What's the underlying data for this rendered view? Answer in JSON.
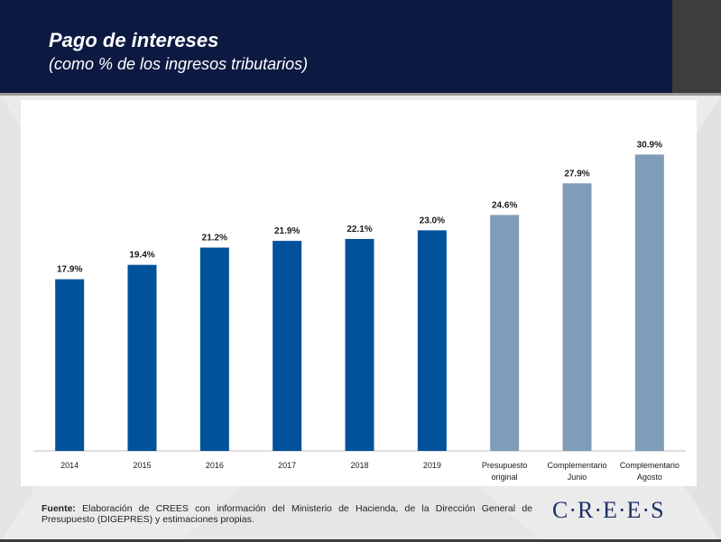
{
  "header": {
    "title": "Pago de intereses",
    "subtitle": "(como % de los ingresos tributarios)"
  },
  "colors": {
    "header_bg": "#0c1a42",
    "bar_actual": "#00529b",
    "bar_projection": "#7f9cb8"
  },
  "chart_data": {
    "type": "bar",
    "title": "",
    "xlabel": "",
    "ylabel": "",
    "ylim": [
      0,
      31.5
    ],
    "grid": false,
    "legend": "none",
    "categories": [
      [
        "2014"
      ],
      [
        "2015"
      ],
      [
        "2016"
      ],
      [
        "2017"
      ],
      [
        "2018"
      ],
      [
        "2019"
      ],
      [
        "Presupuesto",
        "original"
      ],
      [
        "Complementario",
        "Junio"
      ],
      [
        "Complementario",
        "Agosto"
      ]
    ],
    "values": [
      17.9,
      19.4,
      21.2,
      21.9,
      22.1,
      23.0,
      24.6,
      27.9,
      30.9
    ],
    "value_labels": [
      "17.9%",
      "19.4%",
      "21.2%",
      "21.9%",
      "22.1%",
      "23.0%",
      "24.6%",
      "27.9%",
      "30.9%"
    ],
    "bar_group": [
      "actual",
      "actual",
      "actual",
      "actual",
      "actual",
      "actual",
      "projection",
      "projection",
      "projection"
    ]
  },
  "footer": {
    "source_label": "Fuente:",
    "source_text": " Elaboración de CREES con información del Ministerio de Hacienda, de la Dirección General de Presupuesto (DIGEPRES) y estimaciones propias.",
    "logo": "C·R·E·E·S"
  }
}
